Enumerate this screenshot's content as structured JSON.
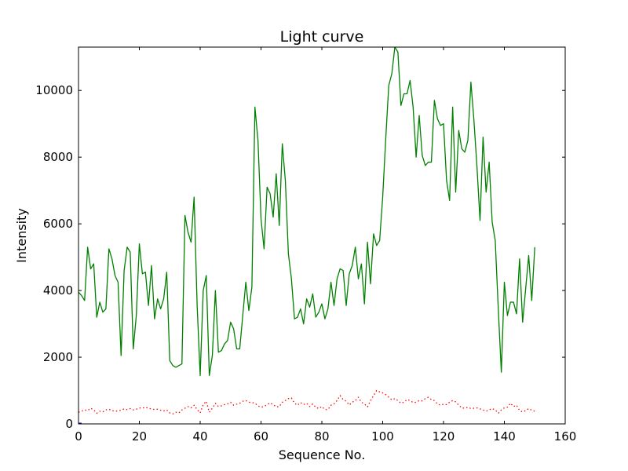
{
  "chart_data": {
    "type": "line",
    "title": "Light curve",
    "xlabel": "Sequence No.",
    "ylabel": "Intensity",
    "xlim": [
      0,
      160
    ],
    "ylim": [
      0,
      11300
    ],
    "xticks": [
      0,
      20,
      40,
      60,
      80,
      100,
      120,
      140,
      160
    ],
    "yticks": [
      0,
      2000,
      4000,
      6000,
      8000,
      10000
    ],
    "grid": false,
    "series": [
      {
        "color": "#008000",
        "style": "solid",
        "values": [
          3950,
          3850,
          3700,
          5300,
          4650,
          4800,
          3200,
          3650,
          3350,
          3450,
          5250,
          4950,
          4450,
          4250,
          2050,
          4600,
          5300,
          5150,
          2250,
          3250,
          5400,
          4500,
          4550,
          3550,
          4750,
          3150,
          3750,
          3450,
          3750,
          4550,
          1900,
          1750,
          1700,
          1750,
          1800,
          6250,
          5750,
          5450,
          6800,
          3550,
          1450,
          4000,
          4450,
          1450,
          2050,
          4000,
          2150,
          2200,
          2400,
          2500,
          3050,
          2850,
          2250,
          2250,
          3250,
          4250,
          3400,
          4100,
          9500,
          8500,
          6150,
          5250,
          7100,
          6900,
          6200,
          7500,
          5950,
          8400,
          7300,
          5100,
          4350,
          3150,
          3200,
          3450,
          3000,
          3750,
          3500,
          3900,
          3200,
          3350,
          3600,
          3150,
          3450,
          4250,
          3550,
          4350,
          4650,
          4600,
          3550,
          4500,
          4750,
          5300,
          4350,
          4800,
          3600,
          5450,
          4200,
          5700,
          5350,
          5500,
          6800,
          8550,
          10150,
          10500,
          11300,
          11150,
          9550,
          9900,
          9900,
          10300,
          9500,
          8000,
          9250,
          8050,
          7750,
          7850,
          7850,
          9700,
          9150,
          8950,
          9000,
          7300,
          6700,
          9500,
          6950,
          8800,
          8250,
          8150,
          8500,
          10250,
          9100,
          7700,
          6100,
          8600,
          6950,
          7850,
          6050,
          5500,
          3450,
          1550,
          4250,
          3250,
          3650,
          3650,
          3300,
          4950,
          3050,
          4050,
          5050,
          3700,
          5300
        ]
      },
      {
        "color": "#ff0000",
        "style": "dotted",
        "values": [
          350,
          380,
          420,
          400,
          470,
          420,
          320,
          380,
          360,
          420,
          440,
          400,
          380,
          390,
          410,
          450,
          430,
          460,
          420,
          440,
          480,
          470,
          500,
          470,
          450,
          430,
          440,
          410,
          390,
          420,
          330,
          300,
          350,
          330,
          420,
          470,
          520,
          480,
          560,
          430,
          330,
          580,
          680,
          350,
          470,
          620,
          520,
          540,
          580,
          600,
          650,
          560,
          590,
          620,
          680,
          700,
          650,
          640,
          620,
          540,
          500,
          520,
          580,
          630,
          580,
          510,
          520,
          650,
          700,
          760,
          780,
          620,
          560,
          640,
          580,
          620,
          520,
          600,
          500,
          460,
          520,
          430,
          430,
          560,
          600,
          700,
          850,
          730,
          680,
          570,
          650,
          700,
          800,
          650,
          600,
          510,
          700,
          850,
          1000,
          960,
          930,
          880,
          800,
          720,
          760,
          700,
          620,
          650,
          730,
          700,
          640,
          650,
          700,
          690,
          760,
          800,
          730,
          700,
          600,
          560,
          590,
          580,
          650,
          700,
          660,
          560,
          480,
          470,
          500,
          460,
          470,
          480,
          450,
          420,
          380,
          420,
          460,
          420,
          320,
          420,
          480,
          500,
          620,
          520,
          560,
          400,
          360,
          400,
          460,
          410,
          380
        ]
      },
      {
        "color": "#0000ff",
        "style": "solid",
        "values": [
          0,
          0
        ]
      }
    ]
  }
}
